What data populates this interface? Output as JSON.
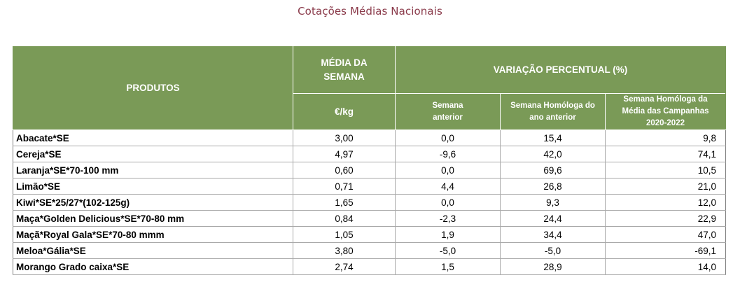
{
  "title": "Cotações Médias Nacionais",
  "headers": {
    "produtos": "PRODUTOS",
    "media_semana": "MÉDIA DA SEMANA",
    "unidade": "€/kg",
    "variacao": "VARIAÇÃO PERCENTUAL (%)",
    "semana_anterior": "Semana anterior",
    "semana_homologa_ano": "Semana Homóloga do ano anterior",
    "semana_homologa_campanhas_l1": "Semana Homóloga da",
    "semana_homologa_campanhas_l2": "Média das Campanhas",
    "semana_homologa_campanhas_l3": "2020-2022"
  },
  "rows": [
    {
      "produto": "Abacate*SE",
      "media": "3,00",
      "sem_anterior": "0,0",
      "homologa_ano": "15,4",
      "homologa_campanhas": "9,8"
    },
    {
      "produto": "Cereja*SE",
      "media": "4,97",
      "sem_anterior": "-9,6",
      "homologa_ano": "42,0",
      "homologa_campanhas": "74,1"
    },
    {
      "produto": "Laranja*SE*70-100 mm",
      "media": "0,60",
      "sem_anterior": "0,0",
      "homologa_ano": "69,6",
      "homologa_campanhas": "10,5"
    },
    {
      "produto": "Limão*SE",
      "media": "0,71",
      "sem_anterior": "4,4",
      "homologa_ano": "26,8",
      "homologa_campanhas": "21,0"
    },
    {
      "produto": "Kiwi*SE*25/27*(102-125g)",
      "media": "1,65",
      "sem_anterior": "0,0",
      "homologa_ano": "9,3",
      "homologa_campanhas": "12,0"
    },
    {
      "produto": "Maça*Golden Delicious*SE*70-80 mm",
      "media": "0,84",
      "sem_anterior": "-2,3",
      "homologa_ano": "24,4",
      "homologa_campanhas": "22,9"
    },
    {
      "produto": "Maçã*Royal Gala*SE*70-80 mmm",
      "media": "1,05",
      "sem_anterior": "1,9",
      "homologa_ano": "34,4",
      "homologa_campanhas": "47,0"
    },
    {
      "produto": "Meloa*Gália*SE",
      "media": "3,80",
      "sem_anterior": "-5,0",
      "homologa_ano": "-5,0",
      "homologa_campanhas": "-69,1"
    },
    {
      "produto": "Morango Grado caixa*SE",
      "media": "2,74",
      "sem_anterior": "1,5",
      "homologa_ano": "28,9",
      "homologa_campanhas": "14,0"
    }
  ],
  "colors": {
    "header_bg": "#7a9a57",
    "header_text": "#ffffff",
    "title_text": "#8a3a4a"
  }
}
